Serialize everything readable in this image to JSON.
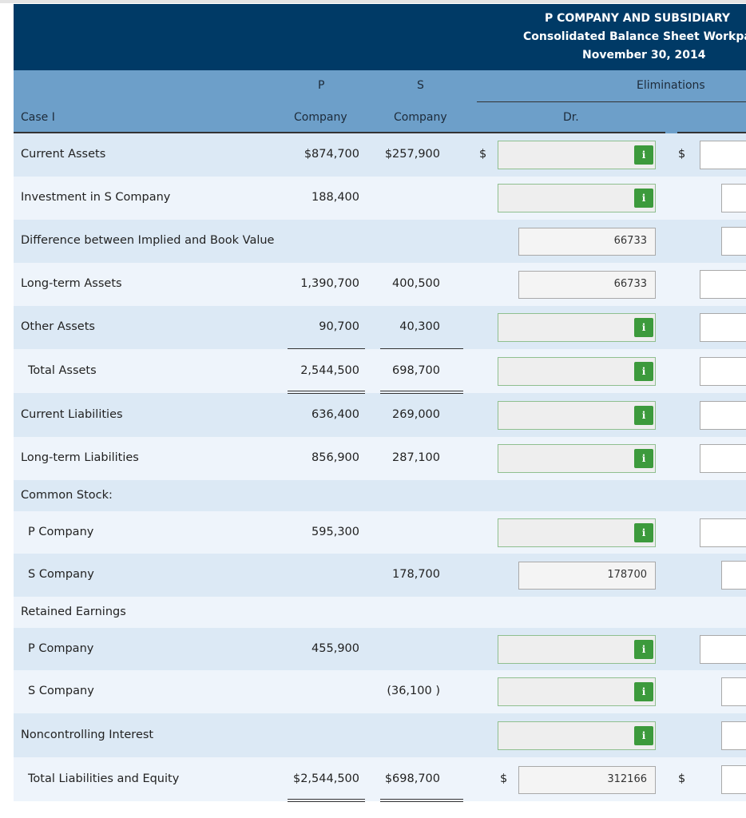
{
  "header": {
    "title": "P COMPANY AND SUBSIDIARY",
    "subtitle": "Consolidated Balance Sheet Workpaper",
    "date": "November 30, 2014"
  },
  "columns": {
    "p_top": "P",
    "s_top": "S",
    "eliminations": "Eliminations",
    "case": "Case I",
    "p_bottom": "Company",
    "s_bottom": "Company",
    "dr": "Dr."
  },
  "info_icon": "i",
  "rows": [
    {
      "label": "Current Assets",
      "p": "$874,700",
      "s": "$257,900",
      "dr_prefix": "$",
      "cr_prefix": "$"
    },
    {
      "label": "Investment in S Company",
      "p": "188,400"
    },
    {
      "label": "Difference between Implied and Book Value",
      "dr": "66733"
    },
    {
      "label": "Long-term Assets",
      "p": "1,390,700",
      "s": "400,500",
      "dr": "66733"
    },
    {
      "label": "Other Assets",
      "p": "90,700",
      "s": "40,300"
    },
    {
      "label": "Total Assets",
      "p": "2,544,500",
      "s": "698,700"
    },
    {
      "label": "Current Liabilities",
      "p": "636,400",
      "s": "269,000"
    },
    {
      "label": "Long-term Liabilities",
      "p": "856,900",
      "s": "287,100"
    },
    {
      "label": "Common Stock:"
    },
    {
      "label": "P Company",
      "p": "595,300"
    },
    {
      "label": "S Company",
      "s": "178,700",
      "dr": "178700"
    },
    {
      "label": "Retained Earnings"
    },
    {
      "label": "P Company",
      "p": "455,900"
    },
    {
      "label": "S Company",
      "s": "(36,100 )"
    },
    {
      "label": "Noncontrolling Interest"
    },
    {
      "label": "Total Liabilities and Equity",
      "p": "$2,544,500",
      "s": "$698,700",
      "dr_prefix": "$",
      "dr": "312166",
      "cr_prefix": "$"
    }
  ]
}
